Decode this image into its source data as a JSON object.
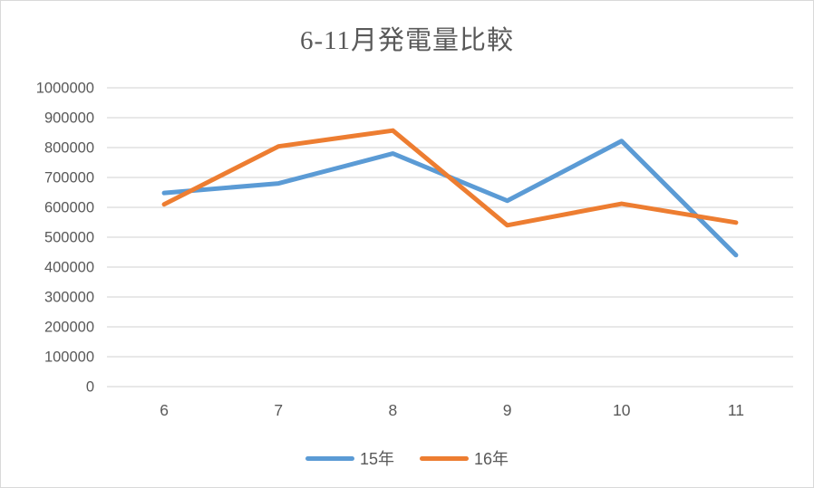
{
  "page": {
    "background": "#ffffff",
    "border_color": "#d9d9d9"
  },
  "chart_data": {
    "type": "line",
    "title": "6-11月発電量比較",
    "xlabel": "",
    "ylabel": "",
    "categories": [
      "6",
      "7",
      "8",
      "9",
      "10",
      "11"
    ],
    "series": [
      {
        "name": "15年",
        "color": "#5B9BD5",
        "values": [
          648000,
          680000,
          780000,
          622000,
          822000,
          440000
        ]
      },
      {
        "name": "16年",
        "color": "#ED7D31",
        "values": [
          610000,
          804000,
          857000,
          540000,
          612000,
          549000
        ]
      }
    ],
    "ylim": [
      0,
      1000000
    ],
    "yticks": [
      0,
      100000,
      200000,
      300000,
      400000,
      500000,
      600000,
      700000,
      800000,
      900000,
      1000000
    ],
    "grid": true,
    "gridline_color": "#D9D9D9",
    "axis_text_color": "#595959",
    "title_color": "#595959",
    "legend_position": "bottom"
  }
}
